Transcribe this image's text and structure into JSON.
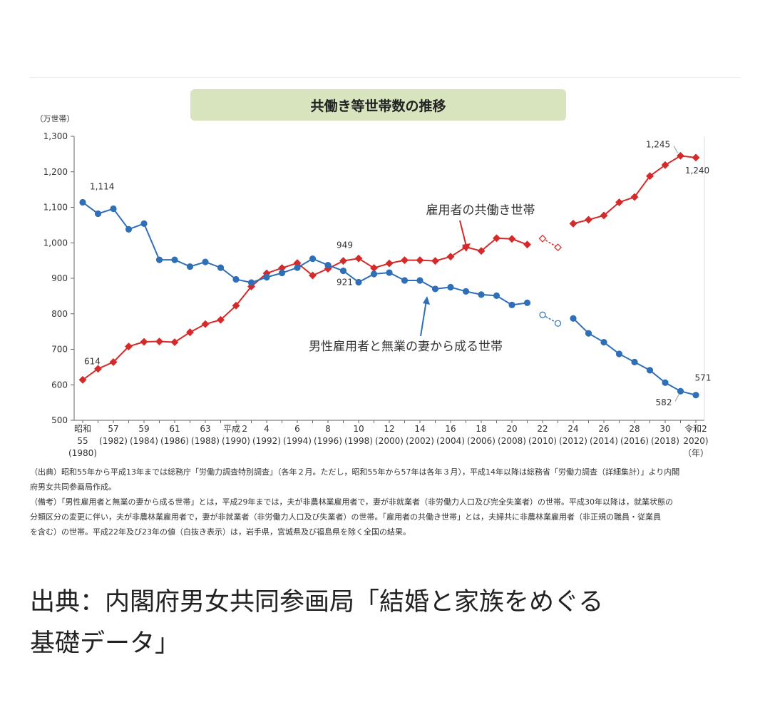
{
  "chart_data": {
    "type": "line",
    "title": "共働き等世帯数の推移",
    "ylabel": "（万世帯）",
    "xunit": "（年）",
    "ylim": [
      500,
      1300
    ],
    "yticks": [
      "1,300",
      "1,200",
      "1,100",
      "1,000",
      "900",
      "800",
      "700",
      "600",
      "500"
    ],
    "x_tick_labels": [
      {
        "l1": "昭和",
        "l2": "55",
        "l3": "(1980)"
      },
      {
        "l1": "",
        "l2": "57",
        "l3": "(1982)"
      },
      {
        "l1": "",
        "l2": "59",
        "l3": "(1984)"
      },
      {
        "l1": "",
        "l2": "61",
        "l3": "(1986)"
      },
      {
        "l1": "",
        "l2": "63",
        "l3": "(1988)"
      },
      {
        "l1": "",
        "l2": "平成２",
        "l3": "(1990)"
      },
      {
        "l1": "",
        "l2": "4",
        "l3": "(1992)"
      },
      {
        "l1": "",
        "l2": "6",
        "l3": "(1994)"
      },
      {
        "l1": "",
        "l2": "8",
        "l3": "(1996)"
      },
      {
        "l1": "",
        "l2": "10",
        "l3": "(1998)"
      },
      {
        "l1": "",
        "l2": "12",
        "l3": "(2000)"
      },
      {
        "l1": "",
        "l2": "14",
        "l3": "(2002)"
      },
      {
        "l1": "",
        "l2": "16",
        "l3": "(2004)"
      },
      {
        "l1": "",
        "l2": "18",
        "l3": "(2006)"
      },
      {
        "l1": "",
        "l2": "20",
        "l3": "(2008)"
      },
      {
        "l1": "",
        "l2": "22",
        "l3": "(2010)"
      },
      {
        "l1": "",
        "l2": "24",
        "l3": "(2012)"
      },
      {
        "l1": "",
        "l2": "26",
        "l3": "(2014)"
      },
      {
        "l1": "",
        "l2": "28",
        "l3": "(2016)"
      },
      {
        "l1": "",
        "l2": "30",
        "l3": "(2018)"
      },
      {
        "l1": "",
        "l2": "令和2",
        "l3": "2020)"
      }
    ],
    "x_years": [
      1980,
      1981,
      1982,
      1983,
      1984,
      1985,
      1986,
      1987,
      1988,
      1989,
      1990,
      1991,
      1992,
      1993,
      1994,
      1995,
      1996,
      1997,
      1998,
      1999,
      2000,
      2001,
      2002,
      2003,
      2004,
      2005,
      2006,
      2007,
      2008,
      2009,
      2010,
      2011,
      2012,
      2013,
      2014,
      2015,
      2016,
      2017,
      2018,
      2019,
      2020
    ],
    "series": [
      {
        "name": "雇用者の共働き世帯",
        "color": "#d42a2a",
        "marker": "diamond",
        "values": [
          614,
          645,
          664,
          708,
          721,
          722,
          720,
          748,
          771,
          783,
          823,
          877,
          914,
          929,
          943,
          908,
          927,
          949,
          956,
          929,
          942,
          951,
          951,
          949,
          961,
          988,
          977,
          1013,
          1011,
          995,
          1012,
          987,
          1054,
          1065,
          1077,
          1114,
          1129,
          1188,
          1219,
          1245,
          1240
        ],
        "hollow_years": [
          2010,
          2011
        ]
      },
      {
        "name": "男性雇用者と無業の妻から成る世帯",
        "color": "#2f6fb7",
        "marker": "circle",
        "values": [
          1114,
          1082,
          1096,
          1038,
          1054,
          952,
          952,
          933,
          946,
          930,
          897,
          888,
          903,
          915,
          930,
          955,
          937,
          921,
          889,
          912,
          916,
          894,
          894,
          870,
          875,
          863,
          854,
          851,
          825,
          831,
          797,
          773,
          787,
          745,
          720,
          687,
          664,
          641,
          606,
          582,
          571
        ],
        "hollow_years": [
          2010,
          2011
        ]
      }
    ],
    "annotations": [
      {
        "text": "1,114"
      },
      {
        "text": "614"
      },
      {
        "text": "949"
      },
      {
        "text": "921"
      },
      {
        "text": "1,245"
      },
      {
        "text": "1,240"
      },
      {
        "text": "582"
      },
      {
        "text": "571"
      }
    ],
    "series_labels": [
      "雇用者の共働き世帯",
      "男性雇用者と無業の妻から成る世帯"
    ]
  },
  "notes": [
    "（出典）昭和55年から平成13年までは総務庁「労働力調査特別調査」（各年２月。ただし，昭和55年から57年は各年３月），平成14年以降は総務省「労働力調査（詳細集計）」より内閣",
    "府男女共同参画局作成。",
    "（備考）「男性雇用者と無業の妻から成る世帯」とは，平成29年までは，夫が非農林業雇用者で，妻が非就業者（非労働力人口及び完全失業者）の世帯。平成30年以降は，就業状態の",
    "分類区分の変更に伴い，夫が非農林業雇用者で，妻が非就業者（非労働力人口及び失業者）の世帯。「雇用者の共働き世帯」とは，夫婦共に非農林業雇用者（非正規の職員・従業員",
    "を含む）の世帯。平成22年及び23年の値（白抜き表示）は，岩手県，宮城県及び福島県を除く全国の結果。"
  ],
  "caption": {
    "line1": "出典：内閣府男女共同参画局「結婚と家族をめぐる",
    "line2": "基礎データ」"
  }
}
